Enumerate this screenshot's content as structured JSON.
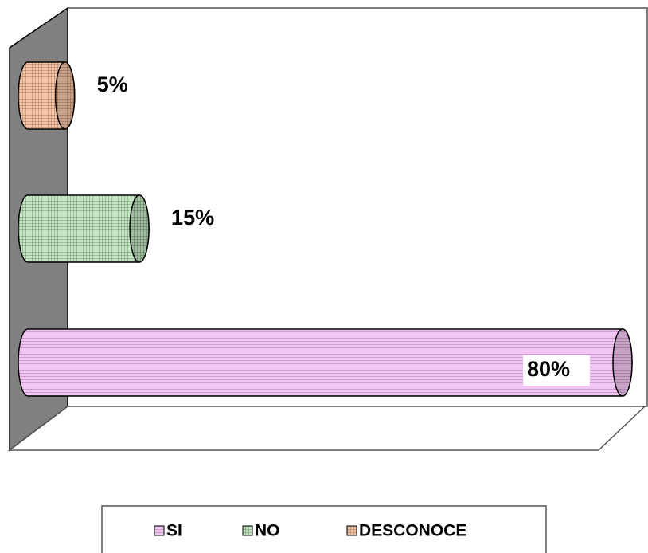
{
  "chart_data": {
    "type": "bar",
    "orientation": "horizontal",
    "categories": [
      null
    ],
    "series": [
      {
        "name": "SI",
        "color": "#f2c6f2",
        "values": [
          80
        ],
        "value_labels": [
          "80%"
        ]
      },
      {
        "name": "NO",
        "color": "#c6e6c6",
        "values": [
          15
        ],
        "value_labels": [
          "15%"
        ]
      },
      {
        "name": "DESCONOCE",
        "color": "#f5c6a6",
        "values": [
          5
        ],
        "value_labels": [
          "5%"
        ]
      }
    ],
    "xlim": [
      0,
      83
    ],
    "legend": "bottom"
  }
}
